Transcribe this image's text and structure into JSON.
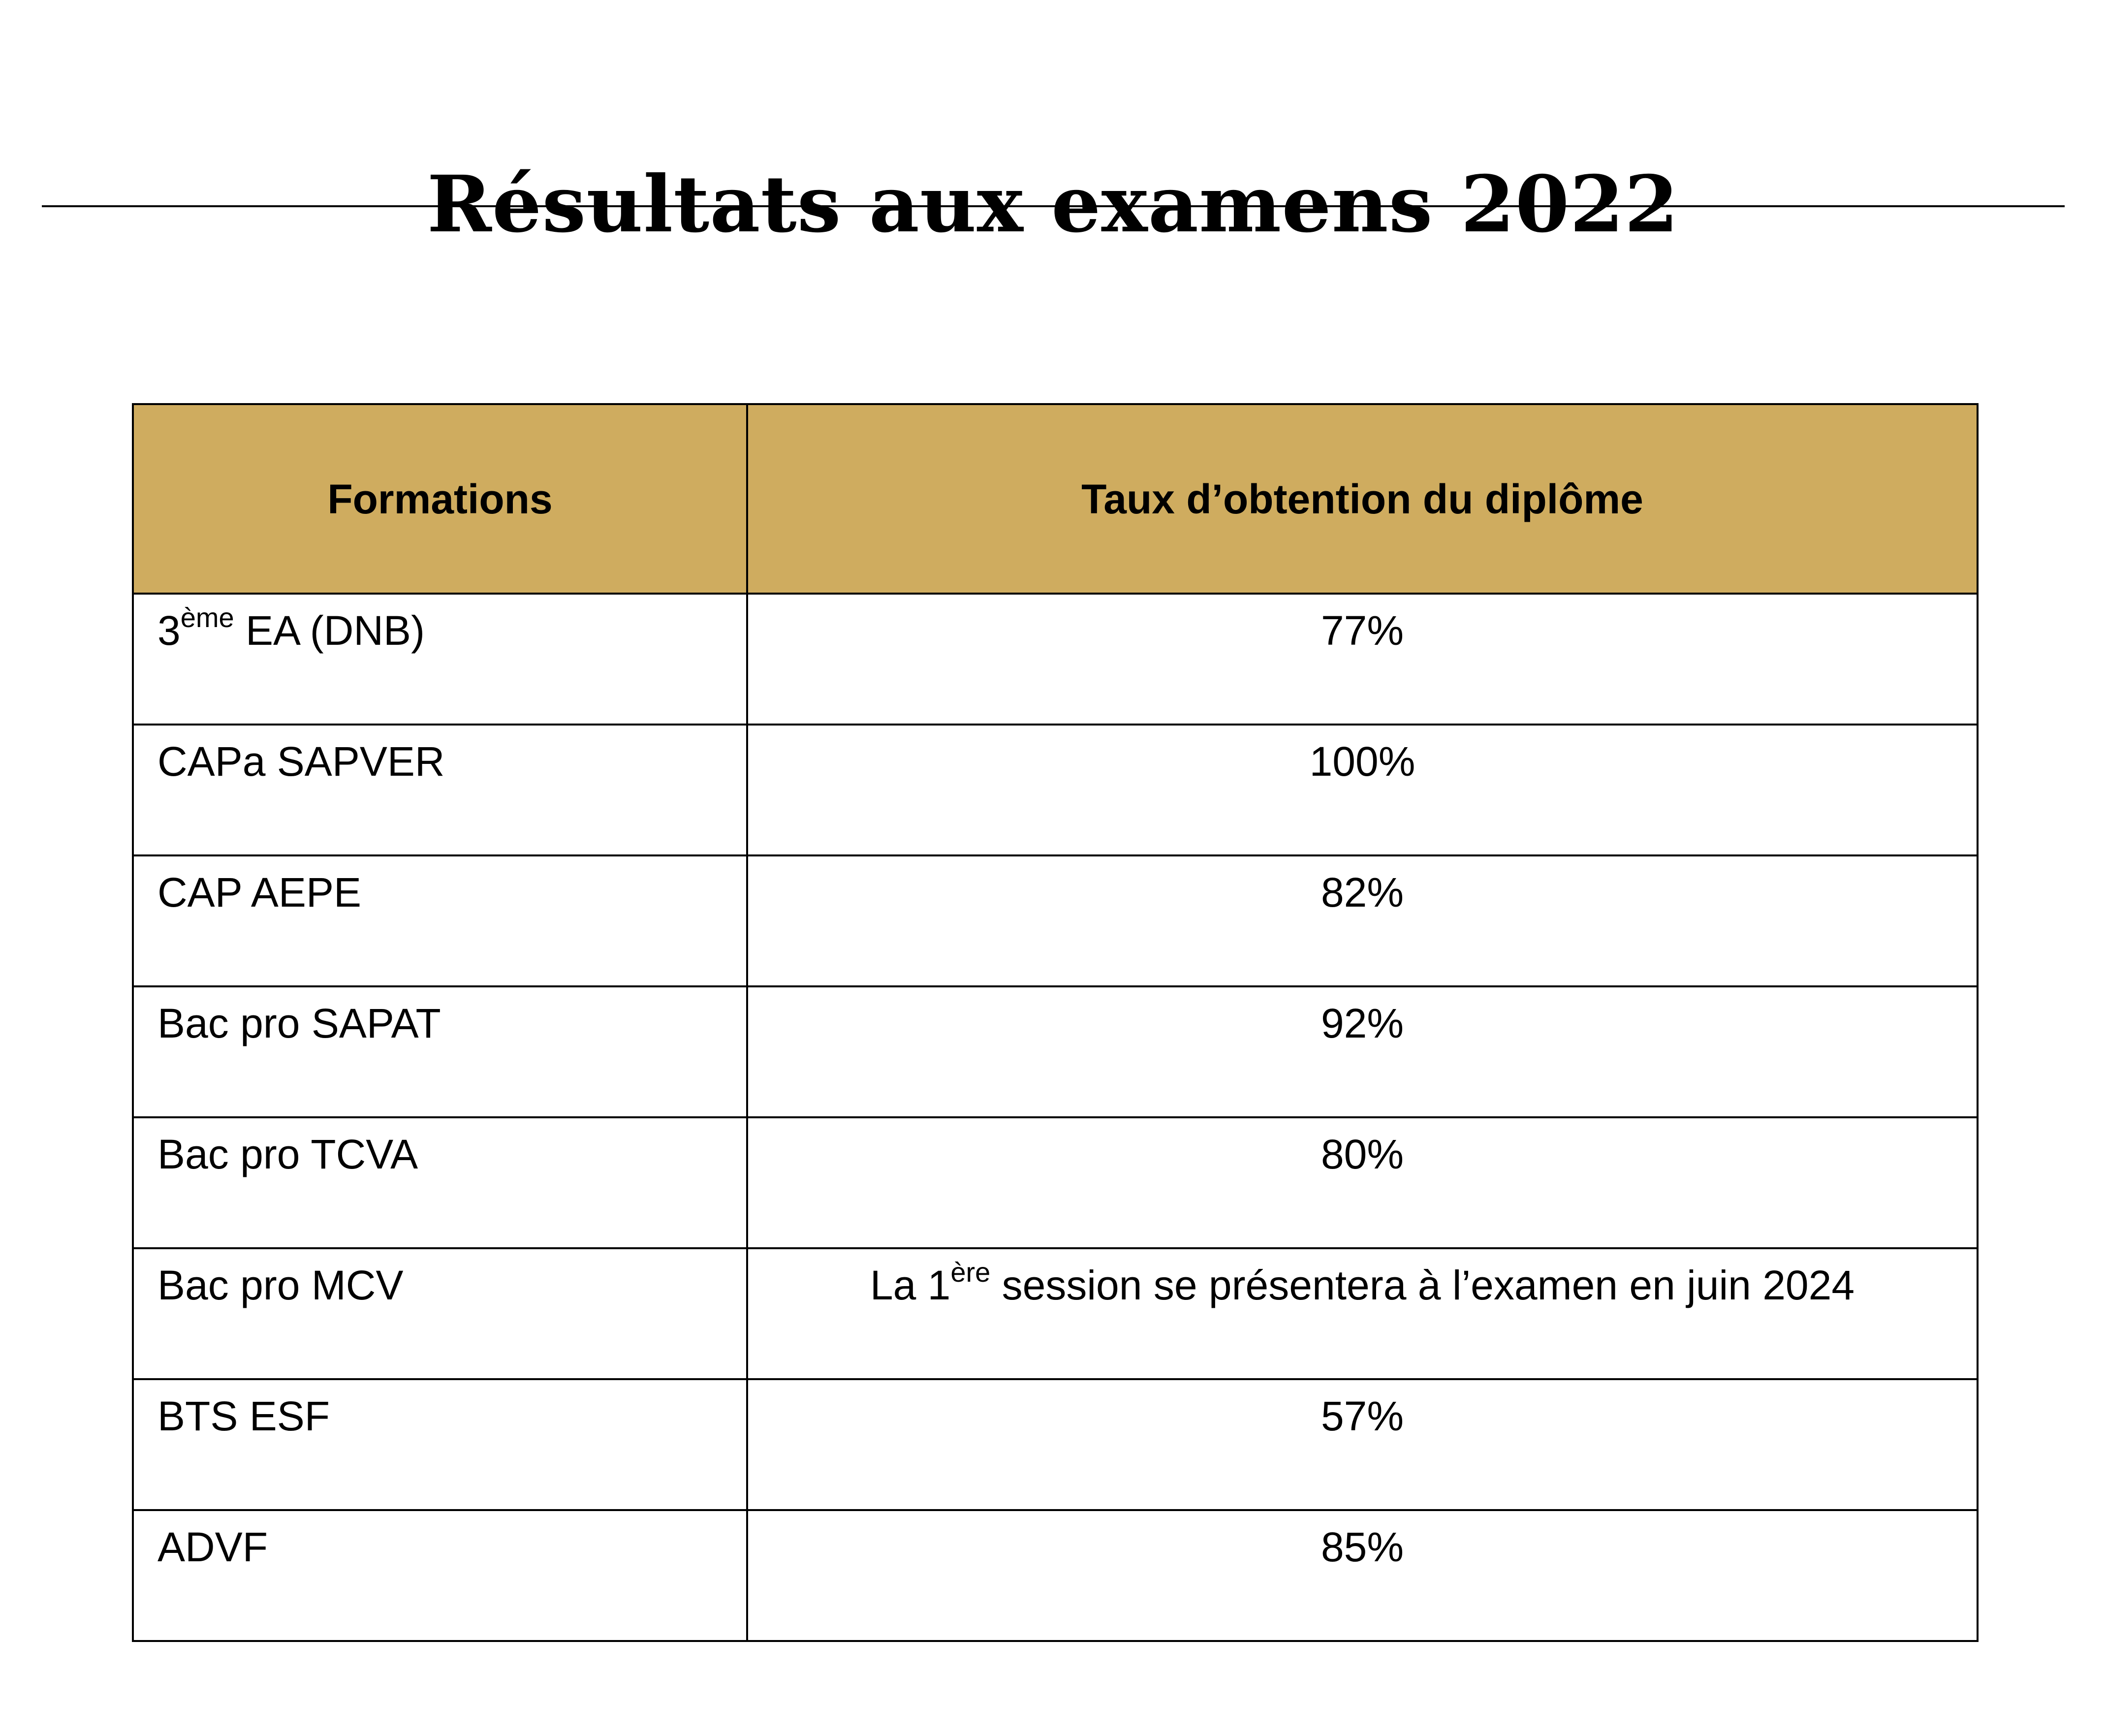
{
  "page": {
    "title": "Résultats aux examens 2022"
  },
  "colors": {
    "header_background": "#cfac5f",
    "border": "#000000",
    "text": "#000000"
  },
  "table": {
    "headers": {
      "formations": "Formations",
      "rate": "Taux d’obtention du diplôme"
    },
    "rows": [
      {
        "formation_pre": "3",
        "formation_sup": "ème",
        "formation_post": " EA (DNB)",
        "rate_pre": "77%",
        "rate_sup": "",
        "rate_post": ""
      },
      {
        "formation_pre": "CAPa SAPVER",
        "formation_sup": "",
        "formation_post": "",
        "rate_pre": "100%",
        "rate_sup": "",
        "rate_post": ""
      },
      {
        "formation_pre": "CAP AEPE",
        "formation_sup": "",
        "formation_post": "",
        "rate_pre": "82%",
        "rate_sup": "",
        "rate_post": ""
      },
      {
        "formation_pre": "Bac pro SAPAT",
        "formation_sup": "",
        "formation_post": "",
        "rate_pre": "92%",
        "rate_sup": "",
        "rate_post": ""
      },
      {
        "formation_pre": "Bac pro TCVA",
        "formation_sup": "",
        "formation_post": "",
        "rate_pre": "80%",
        "rate_sup": "",
        "rate_post": ""
      },
      {
        "formation_pre": "Bac pro MCV",
        "formation_sup": "",
        "formation_post": "",
        "rate_pre": "La 1",
        "rate_sup": "ère",
        "rate_post": " session se présentera à l’examen en juin 2024"
      },
      {
        "formation_pre": "BTS ESF",
        "formation_sup": "",
        "formation_post": "",
        "rate_pre": "57%",
        "rate_sup": "",
        "rate_post": ""
      },
      {
        "formation_pre": "ADVF",
        "formation_sup": "",
        "formation_post": "",
        "rate_pre": "85%",
        "rate_sup": "",
        "rate_post": ""
      }
    ]
  }
}
